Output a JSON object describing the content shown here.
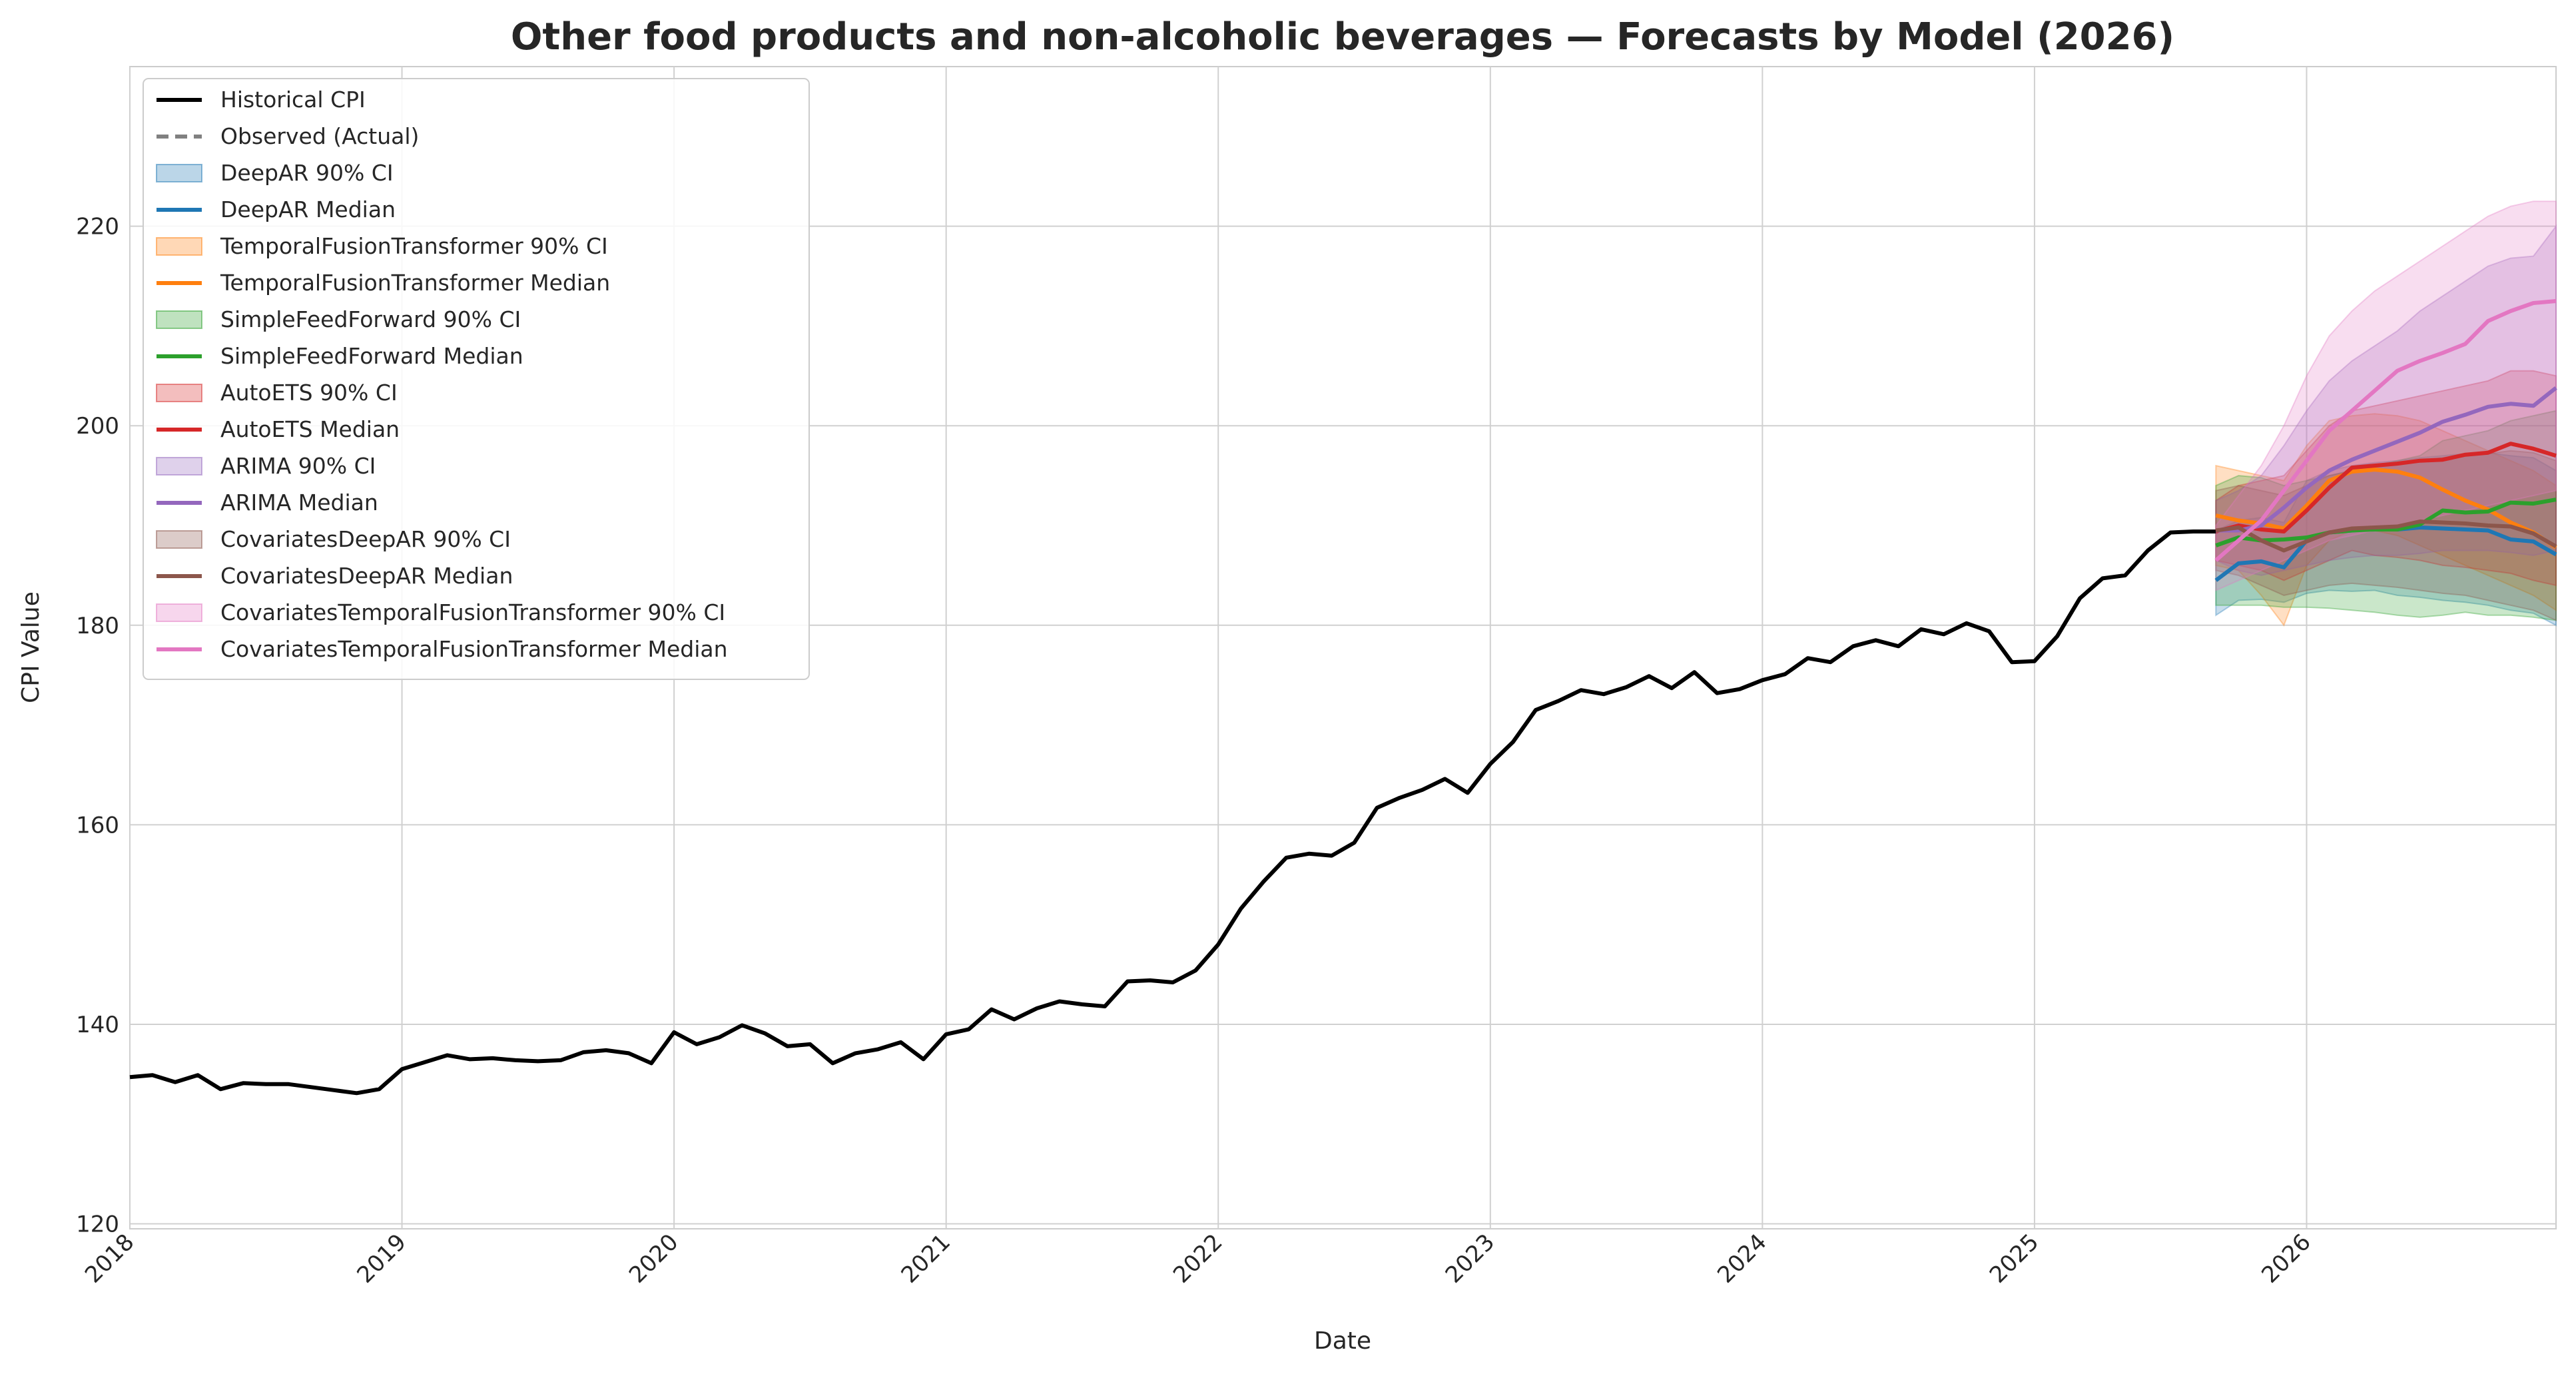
{
  "chart_data": {
    "type": "line",
    "title": "Other food products and non-alcoholic beverages — Forecasts by Model (2026)",
    "xlabel": "Date",
    "ylabel": "CPI Value",
    "xlim": [
      "2018-01",
      "2026-12"
    ],
    "ylim": [
      119.5,
      236
    ],
    "x_ticks": [
      "2018",
      "2019",
      "2020",
      "2021",
      "2022",
      "2023",
      "2024",
      "2025",
      "2026"
    ],
    "y_ticks": [
      120,
      140,
      160,
      180,
      200,
      220
    ],
    "grid": true,
    "legend_position": "upper left",
    "historical": {
      "name": "Historical CPI",
      "color": "#000000",
      "x": [
        "2018-01",
        "2018-02",
        "2018-03",
        "2018-04",
        "2018-05",
        "2018-06",
        "2018-07",
        "2018-08",
        "2018-09",
        "2018-10",
        "2018-11",
        "2018-12",
        "2019-01",
        "2019-02",
        "2019-03",
        "2019-04",
        "2019-05",
        "2019-06",
        "2019-07",
        "2019-08",
        "2019-09",
        "2019-10",
        "2019-11",
        "2019-12",
        "2020-01",
        "2020-02",
        "2020-03",
        "2020-04",
        "2020-05",
        "2020-06",
        "2020-07",
        "2020-08",
        "2020-09",
        "2020-10",
        "2020-11",
        "2020-12",
        "2021-01",
        "2021-02",
        "2021-03",
        "2021-04",
        "2021-05",
        "2021-06",
        "2021-07",
        "2021-08",
        "2021-09",
        "2021-10",
        "2021-11",
        "2021-12",
        "2022-01",
        "2022-02",
        "2022-03",
        "2022-04",
        "2022-05",
        "2022-06",
        "2022-07",
        "2022-08",
        "2022-09",
        "2022-10",
        "2022-11",
        "2022-12",
        "2023-01",
        "2023-02",
        "2023-03",
        "2023-04",
        "2023-05",
        "2023-06",
        "2023-07",
        "2023-08",
        "2023-09",
        "2023-10",
        "2023-11",
        "2023-12",
        "2024-01",
        "2024-02",
        "2024-03",
        "2024-04",
        "2024-05",
        "2024-06",
        "2024-07",
        "2024-08",
        "2024-09",
        "2024-10",
        "2024-11",
        "2024-12",
        "2025-01",
        "2025-02",
        "2025-03",
        "2025-04",
        "2025-05",
        "2025-06",
        "2025-07",
        "2025-08",
        "2025-09"
      ],
      "y": [
        134.7,
        134.9,
        134.2,
        134.9,
        133.5,
        134.1,
        134.0,
        134.0,
        133.7,
        133.4,
        133.1,
        133.5,
        135.5,
        136.2,
        136.9,
        136.5,
        136.6,
        136.4,
        136.3,
        136.4,
        137.2,
        137.4,
        137.1,
        136.1,
        139.2,
        138.0,
        138.7,
        139.9,
        139.1,
        137.8,
        138.0,
        136.1,
        137.1,
        137.5,
        138.2,
        136.5,
        139.0,
        139.5,
        141.5,
        140.5,
        141.6,
        142.3,
        142.0,
        141.8,
        144.3,
        144.4,
        144.2,
        145.4,
        148.0,
        151.6,
        154.3,
        156.7,
        157.1,
        156.9,
        158.2,
        161.7,
        162.7,
        163.5,
        164.6,
        163.2,
        166.1,
        168.3,
        171.5,
        172.4,
        173.5,
        173.1,
        173.8,
        174.9,
        173.7,
        175.3,
        173.2,
        173.6,
        174.5,
        175.1,
        176.7,
        176.3,
        177.9,
        178.5,
        177.9,
        179.6,
        179.1,
        180.2,
        179.4,
        176.3,
        176.4,
        178.9,
        182.7,
        184.7,
        185.0,
        187.5,
        189.3,
        189.4,
        189.4
      ]
    },
    "observed": {
      "name": "Observed (Actual)",
      "color": "#808080",
      "x": [],
      "y": []
    },
    "forecast_x": [
      "2025-09",
      "2025-10",
      "2025-11",
      "2025-12",
      "2026-01",
      "2026-02",
      "2026-03",
      "2026-04",
      "2026-05",
      "2026-06",
      "2026-07",
      "2026-08",
      "2026-09",
      "2026-10",
      "2026-11",
      "2026-12"
    ],
    "series": [
      {
        "name": "DeepAR",
        "ci_label": "DeepAR 90% CI",
        "median_label": "DeepAR Median",
        "color": "#1f77b4",
        "median": [
          184.5,
          186.2,
          186.4,
          185.8,
          188.5,
          189.3,
          189.5,
          189.7,
          189.6,
          189.8,
          189.7,
          189.6,
          189.5,
          188.6,
          188.4,
          187.1
        ],
        "lower": [
          181.0,
          182.5,
          182.6,
          182.3,
          183.2,
          183.5,
          183.4,
          183.5,
          183.0,
          182.8,
          182.5,
          182.3,
          182.0,
          181.5,
          181.2,
          180.0
        ],
        "upper": [
          189.5,
          190.5,
          190.8,
          190.3,
          194.5,
          195.5,
          196.0,
          196.3,
          196.5,
          196.8,
          197.0,
          197.2,
          197.3,
          197.0,
          196.8,
          195.5
        ]
      },
      {
        "name": "TemporalFusionTransformer",
        "ci_label": "TemporalFusionTransformer 90% CI",
        "median_label": "TemporalFusionTransformer Median",
        "color": "#ff7f0e",
        "median": [
          191.0,
          190.5,
          190.2,
          189.7,
          192.0,
          194.5,
          195.4,
          195.6,
          195.4,
          194.8,
          193.6,
          192.5,
          191.6,
          190.3,
          189.3,
          187.8
        ],
        "lower": [
          186.0,
          185.5,
          183.0,
          180.0,
          186.0,
          188.5,
          189.5,
          189.5,
          189.0,
          188.0,
          187.0,
          186.0,
          185.0,
          184.0,
          183.0,
          181.5
        ],
        "upper": [
          196.0,
          195.5,
          195.0,
          194.5,
          198.0,
          200.5,
          201.0,
          201.2,
          201.0,
          200.5,
          199.5,
          198.5,
          197.5,
          196.5,
          195.5,
          194.0
        ]
      },
      {
        "name": "SimpleFeedForward",
        "ci_label": "SimpleFeedForward 90% CI",
        "median_label": "SimpleFeedForward Median",
        "color": "#2ca02c",
        "median": [
          188.0,
          188.8,
          188.5,
          188.6,
          188.8,
          189.3,
          189.5,
          189.6,
          189.6,
          190.1,
          191.5,
          191.3,
          191.4,
          192.3,
          192.2,
          192.6
        ],
        "lower": [
          182.0,
          182.0,
          182.0,
          181.8,
          181.8,
          181.7,
          181.5,
          181.3,
          181.0,
          180.8,
          181.0,
          181.3,
          181.0,
          181.0,
          180.8,
          180.5
        ],
        "upper": [
          194.0,
          195.0,
          194.8,
          194.0,
          194.5,
          195.0,
          195.5,
          196.0,
          196.5,
          197.0,
          198.5,
          199.0,
          199.5,
          200.5,
          201.0,
          201.5
        ]
      },
      {
        "name": "AutoETS",
        "ci_label": "AutoETS 90% CI",
        "median_label": "AutoETS Median",
        "color": "#d62728",
        "median": [
          189.4,
          190.0,
          189.6,
          189.4,
          191.5,
          193.8,
          195.8,
          196.0,
          196.2,
          196.5,
          196.6,
          197.1,
          197.3,
          198.2,
          197.7,
          197.0
        ],
        "lower": [
          186.5,
          186.0,
          185.5,
          184.5,
          185.5,
          186.5,
          187.5,
          187.0,
          186.8,
          186.5,
          186.0,
          185.8,
          185.5,
          185.2,
          184.5,
          184.0
        ],
        "upper": [
          192.5,
          194.0,
          194.5,
          195.0,
          197.5,
          200.0,
          201.5,
          202.0,
          202.5,
          203.0,
          203.5,
          204.0,
          204.5,
          205.5,
          205.5,
          205.0
        ]
      },
      {
        "name": "ARIMA",
        "ci_label": "ARIMA 90% CI",
        "median_label": "ARIMA Median",
        "color": "#9467bd",
        "median": [
          189.5,
          189.5,
          190.0,
          191.8,
          193.8,
          195.5,
          196.6,
          197.5,
          198.4,
          199.3,
          200.4,
          201.1,
          201.9,
          202.2,
          202.0,
          203.8
        ],
        "lower": [
          186.5,
          185.5,
          185.0,
          185.5,
          186.0,
          186.5,
          186.8,
          187.0,
          187.0,
          187.2,
          187.5,
          187.5,
          187.5,
          187.3,
          187.0,
          187.5
        ],
        "upper": [
          192.5,
          193.5,
          195.0,
          198.0,
          201.5,
          204.5,
          206.5,
          208.0,
          209.5,
          211.5,
          213.0,
          214.5,
          216.0,
          216.8,
          217.0,
          220.0
        ]
      },
      {
        "name": "CovariatesDeepAR",
        "ci_label": "CovariatesDeepAR 90% CI",
        "median_label": "CovariatesDeepAR Median",
        "color": "#8c564b",
        "median": [
          189.5,
          189.8,
          188.5,
          187.5,
          188.4,
          189.3,
          189.7,
          189.8,
          189.9,
          190.4,
          190.3,
          190.2,
          190.0,
          189.9,
          189.2,
          187.9
        ],
        "lower": [
          185.5,
          185.0,
          184.0,
          183.0,
          183.5,
          184.0,
          184.2,
          184.0,
          183.8,
          183.5,
          183.2,
          183.0,
          182.5,
          182.0,
          181.5,
          180.5
        ],
        "upper": [
          193.5,
          194.0,
          193.5,
          193.0,
          194.0,
          195.0,
          195.5,
          196.0,
          196.2,
          196.5,
          196.8,
          197.0,
          197.2,
          197.5,
          197.3,
          196.5
        ]
      },
      {
        "name": "CovariatesTemporalFusionTransformer",
        "ci_label": "CovariatesTemporalFusionTransformer 90% CI",
        "median_label": "CovariatesTemporalFusionTransformer Median",
        "color": "#e377c2",
        "median": [
          186.5,
          188.5,
          190.5,
          193.5,
          196.5,
          199.5,
          201.5,
          203.5,
          205.5,
          206.5,
          207.3,
          208.2,
          210.5,
          211.5,
          212.3,
          212.5
        ],
        "lower": [
          183.5,
          184.5,
          185.5,
          186.5,
          187.5,
          188.5,
          189.0,
          189.5,
          190.0,
          190.5,
          191.0,
          191.5,
          192.0,
          192.5,
          193.0,
          193.5
        ],
        "upper": [
          190.0,
          193.0,
          196.0,
          200.0,
          205.0,
          209.0,
          211.5,
          213.5,
          215.0,
          216.5,
          218.0,
          219.5,
          221.0,
          222.0,
          222.5,
          222.5
        ]
      }
    ]
  }
}
